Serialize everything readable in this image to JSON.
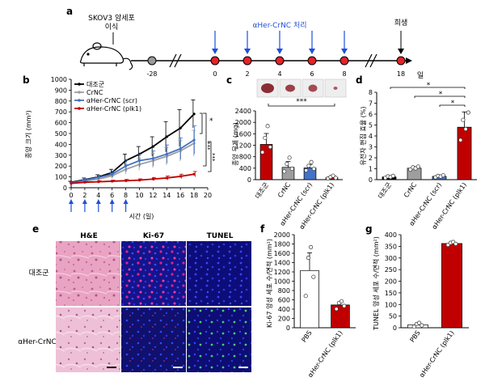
{
  "panel_labels": {
    "a": "a",
    "b": "b",
    "c": "c",
    "d": "d",
    "e": "e",
    "f": "f",
    "g": "g"
  },
  "timeline": {
    "implant_label": "SKOV3 암세포\n이식",
    "treat_label": "αHer-CrNC 처리",
    "sacrifice_label": "희생",
    "day_unit": "일",
    "days": [
      "-28",
      "0",
      "2",
      "4",
      "6",
      "8",
      "18"
    ],
    "treat_days": [
      "0",
      "2",
      "4",
      "6",
      "8"
    ],
    "colors": {
      "start": "#9a9a9a",
      "dose": "#e4222b",
      "arrow": "#1f4fd8",
      "arrow_sacrifice": "#000000"
    }
  },
  "growth_chart": {
    "ylabel": "종양 크기 (mm³)",
    "xlabel": "시간 (일)",
    "yticks": [
      "0",
      "100",
      "200",
      "300",
      "400",
      "500",
      "600",
      "700",
      "800",
      "900",
      "1000"
    ],
    "xticks": [
      "0",
      "2",
      "4",
      "6",
      "8",
      "10",
      "12",
      "14",
      "16",
      "18",
      "20"
    ],
    "legend": [
      "대조군",
      "CrNC",
      "αHer-CrNC (scr)",
      "αHer-CrNC (plk1)"
    ],
    "sig": [
      "*",
      "***",
      "***"
    ]
  },
  "chart_data": [
    {
      "type": "line",
      "x": [
        0,
        2,
        4,
        6,
        8,
        10,
        12,
        14,
        16,
        18
      ],
      "xlabel": "시간 (일)",
      "ylabel": "종양 크기 (mm³)",
      "xlim": [
        0,
        20
      ],
      "ylim": [
        0,
        1000
      ],
      "series": [
        {
          "name": "대조군",
          "color": "#000000",
          "values": [
            50,
            75,
            100,
            140,
            250,
            310,
            380,
            470,
            550,
            680
          ],
          "err": [
            10,
            15,
            20,
            30,
            60,
            70,
            90,
            140,
            170,
            130
          ]
        },
        {
          "name": "CrNC",
          "color": "#9e9e9e",
          "values": [
            45,
            60,
            80,
            110,
            170,
            215,
            250,
            290,
            340,
            410
          ],
          "err": [
            8,
            12,
            18,
            25,
            45,
            55,
            65,
            80,
            95,
            120
          ]
        },
        {
          "name": "αHer-CrNC (scr)",
          "color": "#4472c4",
          "values": [
            45,
            70,
            95,
            125,
            200,
            250,
            270,
            310,
            360,
            440
          ],
          "err": [
            8,
            15,
            20,
            30,
            55,
            60,
            70,
            85,
            100,
            130
          ]
        },
        {
          "name": "αHer-CrNC (plk1)",
          "color": "#c00000",
          "values": [
            40,
            50,
            55,
            60,
            65,
            70,
            80,
            90,
            105,
            125
          ],
          "err": [
            5,
            8,
            10,
            10,
            12,
            12,
            15,
            18,
            20,
            25
          ]
        }
      ]
    },
    {
      "type": "bar",
      "categories": [
        "대조군",
        "CrNC",
        "αHer-CrNC (scr)",
        "αHer-CrNC (plk1)"
      ],
      "values": [
        1230,
        430,
        410,
        70
      ],
      "err": [
        380,
        200,
        120,
        40
      ],
      "colors": [
        "#c00000",
        "#9e9e9e",
        "#4472c4",
        "#c00000"
      ],
      "ylabel": "종양 무게 (mg)",
      "ylim": [
        0,
        2400
      ],
      "yticks": [
        "0",
        "400",
        "800",
        "1200",
        "1600",
        "2000",
        "2400"
      ],
      "sig": "***"
    },
    {
      "type": "bar",
      "categories": [
        "대조군",
        "CrNC",
        "αHer-CrNC (scr)",
        "αHer-CrNC (plk1)"
      ],
      "values": [
        0.25,
        1.05,
        0.3,
        4.8
      ],
      "err": [
        0.1,
        0.15,
        0.1,
        1.4
      ],
      "colors": [
        "#000000",
        "#9e9e9e",
        "#4472c4",
        "#c00000"
      ],
      "ylabel": "유전자 편집 효율 (%)",
      "ylim": [
        0,
        8
      ],
      "yticks": [
        "0",
        "1",
        "2",
        "3",
        "4",
        "5",
        "6",
        "7",
        "8"
      ],
      "sig": [
        "*",
        "*",
        "*"
      ]
    },
    {
      "type": "bar",
      "categories": [
        "PBS",
        "αHer-CrNC (plk1)"
      ],
      "values": [
        1230,
        490
      ],
      "err": [
        380,
        60
      ],
      "colors": [
        "#ffffff",
        "#c00000"
      ],
      "ylabel": "Ki-67 양성 세포 수/면적 (mm²)",
      "ylim": [
        0,
        2000
      ],
      "yticks": [
        "0",
        "200",
        "400",
        "600",
        "800",
        "1000",
        "1200",
        "1400",
        "1600",
        "1800",
        "2000"
      ]
    },
    {
      "type": "bar",
      "categories": [
        "PBS",
        "αHer-CrNC (plk1)"
      ],
      "values": [
        12,
        362
      ],
      "err": [
        8,
        6
      ],
      "colors": [
        "#ffffff",
        "#c00000"
      ],
      "ylabel": "TUNEL 양성 세포 수/면적 (mm²)",
      "ylim": [
        0,
        400
      ],
      "yticks": [
        "0",
        "50",
        "100",
        "150",
        "200",
        "250",
        "300",
        "350",
        "400"
      ]
    }
  ],
  "micrographs": {
    "columns": [
      "H&E",
      "Ki-67",
      "TUNEL"
    ],
    "rows": [
      "대조군",
      "αHer-CrNC"
    ]
  }
}
